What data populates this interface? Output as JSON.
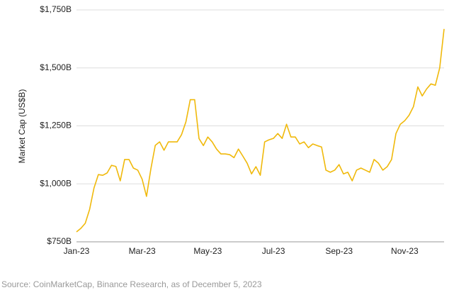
{
  "chart_data": {
    "type": "line",
    "ylabel": "Market Cap (US$B)",
    "source": "Source: CoinMarketCap, Binance Research, as of December 5, 2023",
    "categories": [
      "Jan-23",
      null,
      null,
      null,
      null,
      null,
      null,
      null,
      null,
      null,
      null,
      null,
      null,
      null,
      null,
      "Mar-23",
      null,
      null,
      null,
      null,
      null,
      null,
      null,
      null,
      null,
      null,
      null,
      null,
      null,
      null,
      "May-23",
      null,
      null,
      null,
      null,
      null,
      null,
      null,
      null,
      null,
      null,
      null,
      null,
      null,
      null,
      "Jul-23",
      null,
      null,
      null,
      null,
      null,
      null,
      null,
      null,
      null,
      null,
      null,
      null,
      null,
      null,
      "Sep-23",
      null,
      null,
      null,
      null,
      null,
      null,
      null,
      null,
      null,
      null,
      null,
      null,
      null,
      null,
      "Nov-23",
      null,
      null,
      null,
      null,
      null,
      null,
      null,
      null,
      null
    ],
    "values": [
      793,
      808,
      830,
      890,
      982,
      1040,
      1037,
      1047,
      1080,
      1075,
      1013,
      1105,
      1105,
      1068,
      1059,
      1020,
      946,
      1065,
      1166,
      1181,
      1145,
      1181,
      1181,
      1181,
      1212,
      1267,
      1363,
      1363,
      1195,
      1165,
      1202,
      1181,
      1150,
      1129,
      1129,
      1126,
      1113,
      1150,
      1120,
      1089,
      1043,
      1074,
      1037,
      1181,
      1190,
      1196,
      1217,
      1196,
      1257,
      1202,
      1202,
      1172,
      1181,
      1156,
      1172,
      1165,
      1159,
      1059,
      1050,
      1059,
      1083,
      1043,
      1050,
      1013,
      1059,
      1068,
      1059,
      1050,
      1105,
      1089,
      1059,
      1074,
      1105,
      1217,
      1257,
      1272,
      1296,
      1333,
      1418,
      1379,
      1409,
      1431,
      1425,
      1500,
      1668
    ],
    "color": "#f0b90b",
    "ylim": [
      750,
      1750
    ],
    "yticks": [
      {
        "value": 750,
        "label": "$750B"
      },
      {
        "value": 1000,
        "label": "$1,000B"
      },
      {
        "value": 1250,
        "label": "$1,250B"
      },
      {
        "value": 1500,
        "label": "$1,500B"
      },
      {
        "value": 1750,
        "label": "$1,750B"
      }
    ],
    "grid": true
  }
}
